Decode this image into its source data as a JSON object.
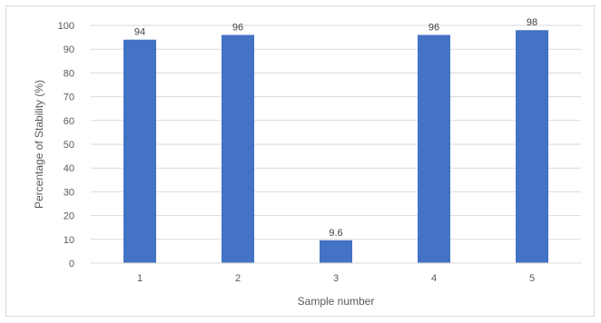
{
  "chart_data": {
    "type": "bar",
    "categories": [
      "1",
      "2",
      "3",
      "4",
      "5"
    ],
    "values": [
      94,
      96,
      9.6,
      96,
      98
    ],
    "data_labels": [
      "94",
      "96",
      "9.6",
      "96",
      "98"
    ],
    "title": "",
    "xlabel": "Sample number",
    "ylabel": "Percentage of Stability (%)",
    "ylim": [
      0,
      100
    ],
    "yticks": [
      "0",
      "10",
      "20",
      "30",
      "40",
      "50",
      "60",
      "70",
      "80",
      "90",
      "100"
    ],
    "grid": true,
    "legend": "none",
    "colors": {
      "bar": "#4472c4",
      "grid": "#d9d9d9"
    }
  }
}
